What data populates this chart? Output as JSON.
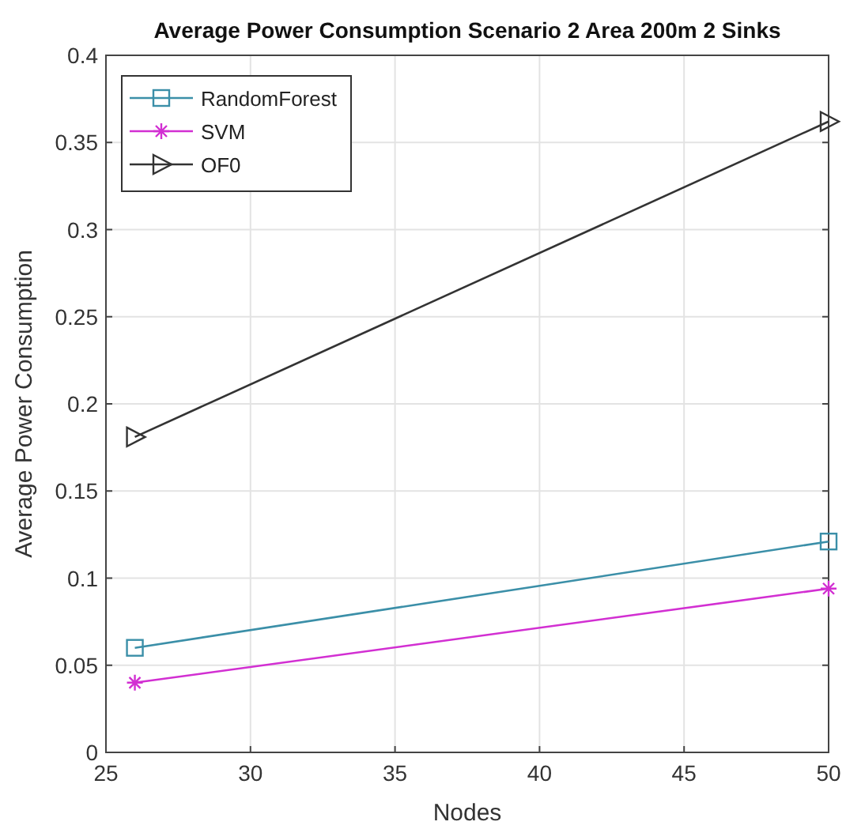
{
  "chart_data": {
    "type": "line",
    "title": "Average Power Consumption Scenario 2 Area 200m 2 Sinks",
    "xlabel": "Nodes",
    "ylabel": "Average Power Consumption",
    "x": [
      26,
      50
    ],
    "series": [
      {
        "name": "RandomForest",
        "color": "#3b8fa8",
        "values": [
          0.06,
          0.121
        ],
        "marker": "square"
      },
      {
        "name": "SVM",
        "color": "#d22fd2",
        "values": [
          0.04,
          0.094
        ],
        "marker": "cross"
      },
      {
        "name": "OF0",
        "color": "#333333",
        "values": [
          0.181,
          0.362
        ],
        "marker": "triangle"
      }
    ],
    "xlim": [
      25,
      50
    ],
    "xticks": [
      25,
      30,
      35,
      40,
      45,
      50
    ],
    "ylim": [
      0,
      0.4
    ],
    "yticks": [
      0,
      0.05,
      0.1,
      0.15,
      0.2,
      0.25,
      0.3,
      0.35,
      0.4
    ],
    "grid": true,
    "legend": "top left",
    "line_style": "solid"
  }
}
